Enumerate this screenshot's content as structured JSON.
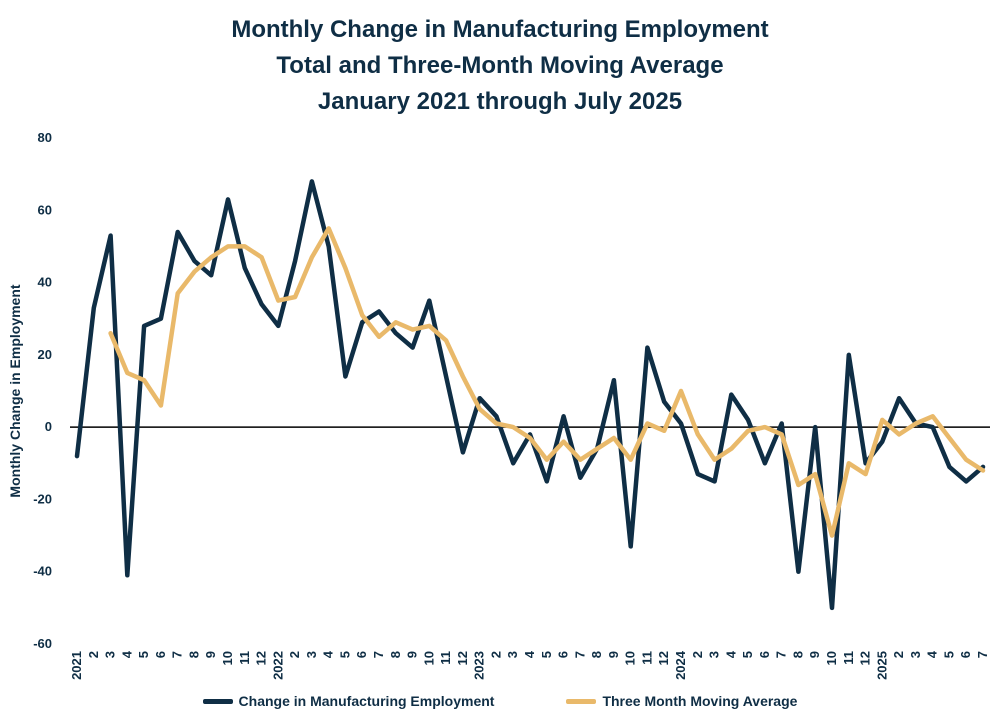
{
  "chart_data": {
    "type": "line",
    "title": [
      "Monthly Change in Manufacturing Employment",
      "Total and Three-Month Moving Average",
      "January 2021 through July 2025"
    ],
    "ylabel": "Monthly Change in Employment",
    "xlabel": "",
    "ylim": [
      -60,
      80
    ],
    "yticks": [
      80,
      60,
      40,
      20,
      0,
      -20,
      -40,
      -60
    ],
    "zero_line": true,
    "grid": false,
    "legend_position": "bottom-center",
    "categories": [
      "2021",
      "2",
      "3",
      "4",
      "5",
      "6",
      "7",
      "8",
      "9",
      "10",
      "11",
      "12",
      "2022",
      "2",
      "3",
      "4",
      "5",
      "6",
      "7",
      "8",
      "9",
      "10",
      "11",
      "12",
      "2023",
      "2",
      "3",
      "4",
      "5",
      "6",
      "7",
      "8",
      "9",
      "10",
      "11",
      "12",
      "2024",
      "2",
      "3",
      "4",
      "5",
      "6",
      "7",
      "8",
      "9",
      "10",
      "11",
      "12",
      "2025",
      "2",
      "3",
      "4",
      "5",
      "6",
      "7"
    ],
    "series": [
      {
        "name": "Change in Manufacturing Employment",
        "color": "#0f2e45",
        "values": [
          -8,
          33,
          53,
          -41,
          28,
          30,
          54,
          46,
          42,
          63,
          44,
          34,
          28,
          46,
          68,
          50,
          14,
          29,
          32,
          26,
          22,
          35,
          14,
          -7,
          8,
          3,
          -10,
          -2,
          -15,
          3,
          -14,
          -6,
          13,
          -33,
          22,
          7,
          1,
          -13,
          -15,
          9,
          2,
          -10,
          1,
          -40,
          0,
          -50,
          20,
          -10,
          -4,
          8,
          1,
          0,
          -11,
          -15,
          -11
        ]
      },
      {
        "name": "Three Month Moving Average",
        "color": "#e9b96a",
        "values": [
          null,
          null,
          26,
          15,
          13,
          6,
          37,
          43,
          47,
          50,
          50,
          47,
          35,
          36,
          47,
          55,
          44,
          31,
          25,
          29,
          27,
          28,
          24,
          14,
          5,
          1,
          0,
          -3,
          -9,
          -4,
          -9,
          -6,
          -3,
          -9,
          1,
          -1,
          10,
          -2,
          -9,
          -6,
          -1,
          0,
          -2,
          -16,
          -13,
          -30,
          -10,
          -13,
          2,
          -2,
          1,
          3,
          -3,
          -9,
          -12
        ]
      }
    ]
  }
}
